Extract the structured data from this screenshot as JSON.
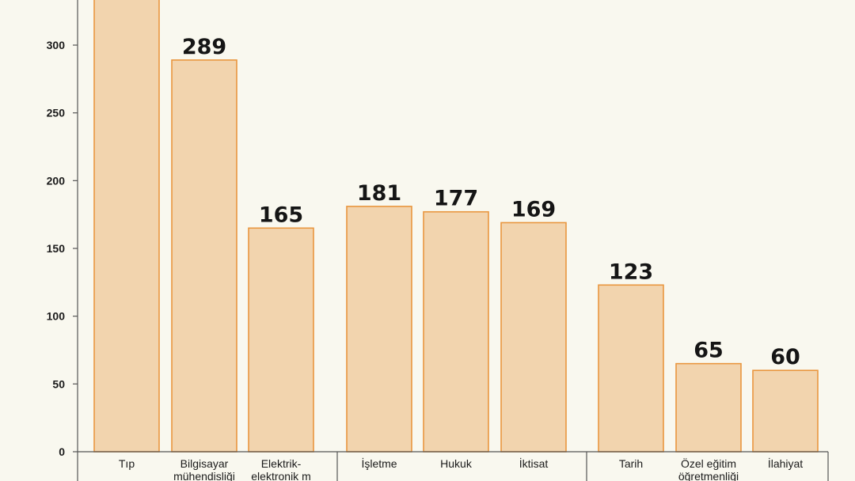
{
  "chart_data": {
    "type": "bar",
    "categories": [
      "Tıp",
      "Bilgisayar mühendisliği",
      "Elektrik-elektronik mühendisliği",
      "İşletme",
      "Hukuk",
      "İktisat",
      "Tarih",
      "Özel eğitim öğretmenliği",
      "İlahiyat"
    ],
    "category_lines": [
      [
        "Tıp"
      ],
      [
        "Bilgisayar",
        "mühendisliği"
      ],
      [
        "Elektrik-",
        "elektronik m"
      ],
      [
        "İşletme"
      ],
      [
        "Hukuk"
      ],
      [
        "İktisat"
      ],
      [
        "Tarih"
      ],
      [
        "Özel eğitim",
        "öğretmenliği"
      ],
      [
        "İlahiyat"
      ]
    ],
    "groups": [
      [
        0,
        1,
        2
      ],
      [
        3,
        4,
        5
      ],
      [
        6,
        7,
        8
      ]
    ],
    "values": [
      340,
      289,
      165,
      181,
      177,
      169,
      123,
      65,
      60
    ],
    "value_labels": [
      "",
      "289",
      "165",
      "181",
      "177",
      "169",
      "123",
      "65",
      "60"
    ],
    "y_ticks": [
      0,
      50,
      100,
      150,
      200,
      250,
      300
    ],
    "ylim": [
      0,
      340
    ],
    "grid": false,
    "colors": {
      "bar_fill": "#f2d4ae",
      "bar_stroke": "#e9963f",
      "axis": "#555555",
      "text": "#151515",
      "background": "#f9f8ef"
    }
  }
}
